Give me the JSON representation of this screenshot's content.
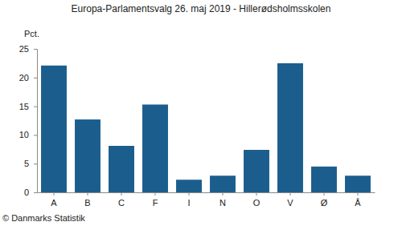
{
  "chart_data": {
    "type": "bar",
    "title": "Europa-Parlamentsvalg 26. maj 2019 - Hillerødsholmsskolen",
    "y_label": "Pct.",
    "source": "© Danmarks Statistik",
    "categories": [
      "A",
      "B",
      "C",
      "F",
      "I",
      "N",
      "O",
      "V",
      "Ø",
      "Å"
    ],
    "values": [
      22.1,
      12.7,
      8.1,
      15.3,
      2.2,
      2.9,
      7.4,
      22.5,
      4.5,
      2.9
    ],
    "color": "#1b5e8e",
    "ylim": [
      0,
      25
    ],
    "yticks": [
      0,
      5,
      10,
      15,
      20,
      25
    ],
    "grid": false
  }
}
